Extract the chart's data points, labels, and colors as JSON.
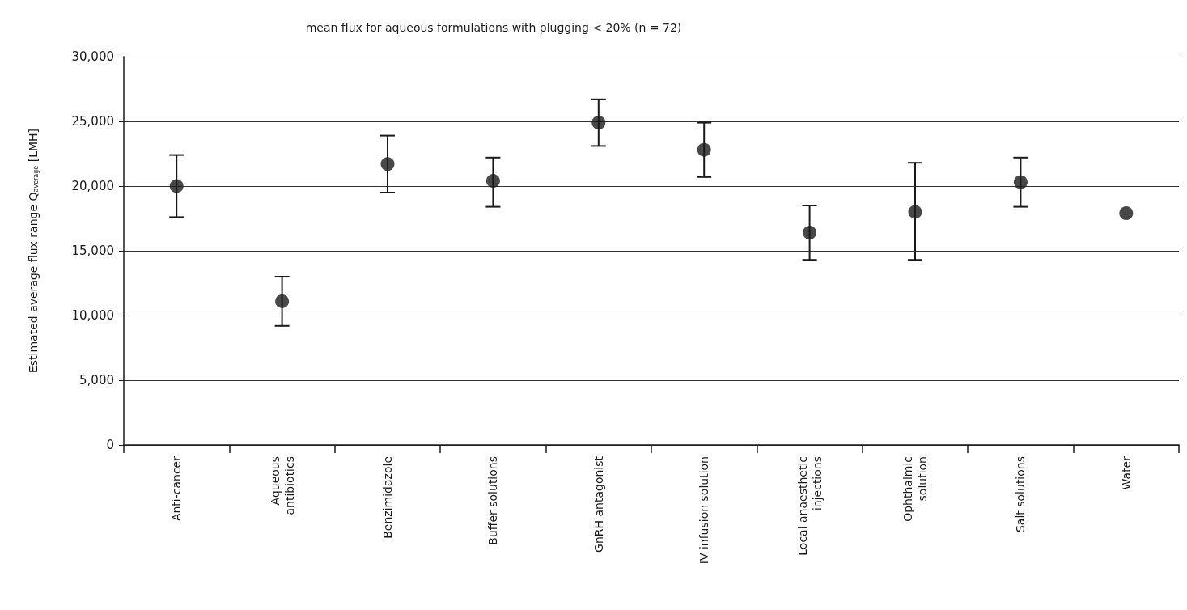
{
  "chart_data": {
    "type": "scatter",
    "title": "mean flux for aqueous formulations with plugging < 20% (n = 72)",
    "ylabel": "Estimated average flux range Q$_{average}$ [LMH]",
    "categories": [
      "Anti-cancer",
      "Aqueous\nantibiotics",
      "Benzimidazole",
      "Buffer solutions",
      "GnRH antagonist",
      "IV infusion solution",
      "Local anaesthetic\ninjections",
      "Ophthalmic\nsolution",
      "Salt solutions",
      "Water"
    ],
    "series": [
      {
        "color": "#1a1a1a",
        "values": [
          20000,
          11100,
          21700,
          20400,
          24900,
          22800,
          16400,
          18000,
          20300,
          17900
        ],
        "errors": [
          [
            17600,
            22400
          ],
          [
            9200,
            13000
          ],
          [
            19500,
            23900
          ],
          [
            18400,
            22200
          ],
          [
            23100,
            26700
          ],
          [
            20700,
            24900
          ],
          [
            14300,
            18500
          ],
          [
            14300,
            21800
          ],
          [
            18400,
            22200
          ],
          null
        ]
      }
    ],
    "ylim": [
      0,
      30000
    ],
    "yticks": [
      {
        "value": 0,
        "label": "0"
      },
      {
        "value": 5000,
        "label": "5,000"
      },
      {
        "value": 10000,
        "label": "10,000"
      },
      {
        "value": 15000,
        "label": "15,000"
      },
      {
        "value": 20000,
        "label": "20,000"
      },
      {
        "value": 25000,
        "label": "25,000"
      },
      {
        "value": 30000,
        "label": "30,000"
      }
    ],
    "grid": "y",
    "marker": "circle"
  }
}
